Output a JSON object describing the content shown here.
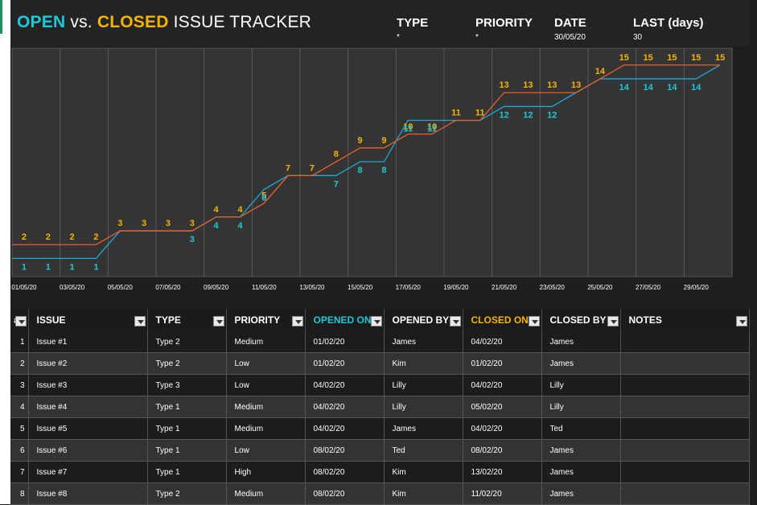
{
  "header": {
    "title_open": "OPEN",
    "title_vs": "vs.",
    "title_closed": "CLOSED",
    "title_rest": "ISSUE TRACKER",
    "fields": [
      {
        "label": "TYPE",
        "value": "*"
      },
      {
        "label": "PRIORITY",
        "value": "*"
      },
      {
        "label": "DATE",
        "value": "30/05/20"
      },
      {
        "label": "LAST (days)",
        "value": "30"
      }
    ]
  },
  "colors": {
    "open": "#1ec8d8",
    "closed": "#f5b400",
    "closed_line": "#e8602c",
    "open_line": "#1fa8d8"
  },
  "chart_data": {
    "type": "line",
    "x": [
      "01/05/20",
      "02/05/20",
      "03/05/20",
      "04/05/20",
      "05/05/20",
      "06/05/20",
      "07/05/20",
      "08/05/20",
      "09/05/20",
      "10/05/20",
      "11/05/20",
      "12/05/20",
      "13/05/20",
      "14/05/20",
      "15/05/20",
      "16/05/20",
      "17/05/20",
      "18/05/20",
      "19/05/20",
      "20/05/20",
      "21/05/20",
      "22/05/20",
      "23/05/20",
      "24/05/20",
      "25/05/20",
      "26/05/20",
      "27/05/20",
      "28/05/20",
      "29/05/20",
      "30/05/20"
    ],
    "tick_labels": [
      "01/05/20",
      "03/05/20",
      "05/05/20",
      "07/05/20",
      "09/05/20",
      "11/05/20",
      "13/05/20",
      "15/05/20",
      "17/05/20",
      "19/05/20",
      "21/05/20",
      "23/05/20",
      "25/05/20",
      "27/05/20",
      "29/05/20"
    ],
    "series": [
      {
        "values": [
          2,
          2,
          2,
          2,
          3,
          3,
          3,
          3,
          4,
          4,
          5,
          7,
          7,
          8,
          9,
          9,
          10,
          10,
          11,
          11,
          13,
          13,
          13,
          13,
          14,
          15,
          15,
          15,
          15,
          15
        ]
      },
      {
        "values": [
          1,
          1,
          1,
          1,
          3,
          3,
          3,
          3,
          4,
          4,
          6,
          7,
          7,
          7,
          8,
          8,
          11,
          11,
          11,
          11,
          12,
          12,
          12,
          13,
          14,
          14,
          14,
          14,
          14,
          15
        ]
      }
    ],
    "label_flags": {
      "closed": [
        1,
        1,
        1,
        1,
        1,
        1,
        1,
        1,
        1,
        1,
        1,
        1,
        1,
        1,
        1,
        1,
        1,
        1,
        1,
        1,
        1,
        1,
        1,
        1,
        1,
        1,
        1,
        1,
        1,
        1
      ],
      "open": [
        1,
        1,
        1,
        1,
        0,
        0,
        0,
        1,
        1,
        1,
        1,
        0,
        0,
        1,
        1,
        1,
        1,
        1,
        0,
        0,
        1,
        1,
        1,
        0,
        0,
        1,
        1,
        1,
        1,
        0
      ]
    },
    "grid": "vertical",
    "legend": "none"
  },
  "table": {
    "columns": [
      "#",
      "ISSUE",
      "TYPE",
      "PRIORITY",
      "OPENED ON",
      "OPENED BY",
      "CLOSED ON",
      "CLOSED BY",
      "NOTES"
    ],
    "rows": [
      [
        "1",
        "Issue #1",
        "Type 2",
        "Medium",
        "01/02/20",
        "James",
        "04/02/20",
        "James",
        ""
      ],
      [
        "2",
        "Issue #2",
        "Type 2",
        "Low",
        "01/02/20",
        "Kim",
        "01/02/20",
        "James",
        ""
      ],
      [
        "3",
        "Issue #3",
        "Type 3",
        "Low",
        "04/02/20",
        "Lilly",
        "04/02/20",
        "Lilly",
        ""
      ],
      [
        "4",
        "Issue #4",
        "Type 1",
        "Medium",
        "04/02/20",
        "Lilly",
        "05/02/20",
        "Lilly",
        ""
      ],
      [
        "5",
        "Issue #5",
        "Type 1",
        "Medium",
        "04/02/20",
        "James",
        "04/02/20",
        "Ted",
        ""
      ],
      [
        "6",
        "Issue #6",
        "Type 1",
        "Low",
        "08/02/20",
        "Ted",
        "08/02/20",
        "James",
        ""
      ],
      [
        "7",
        "Issue #7",
        "Type 1",
        "High",
        "08/02/20",
        "Kim",
        "13/02/20",
        "James",
        ""
      ],
      [
        "8",
        "Issue #8",
        "Type 2",
        "Medium",
        "08/02/20",
        "Kim",
        "11/02/20",
        "James",
        ""
      ]
    ]
  }
}
